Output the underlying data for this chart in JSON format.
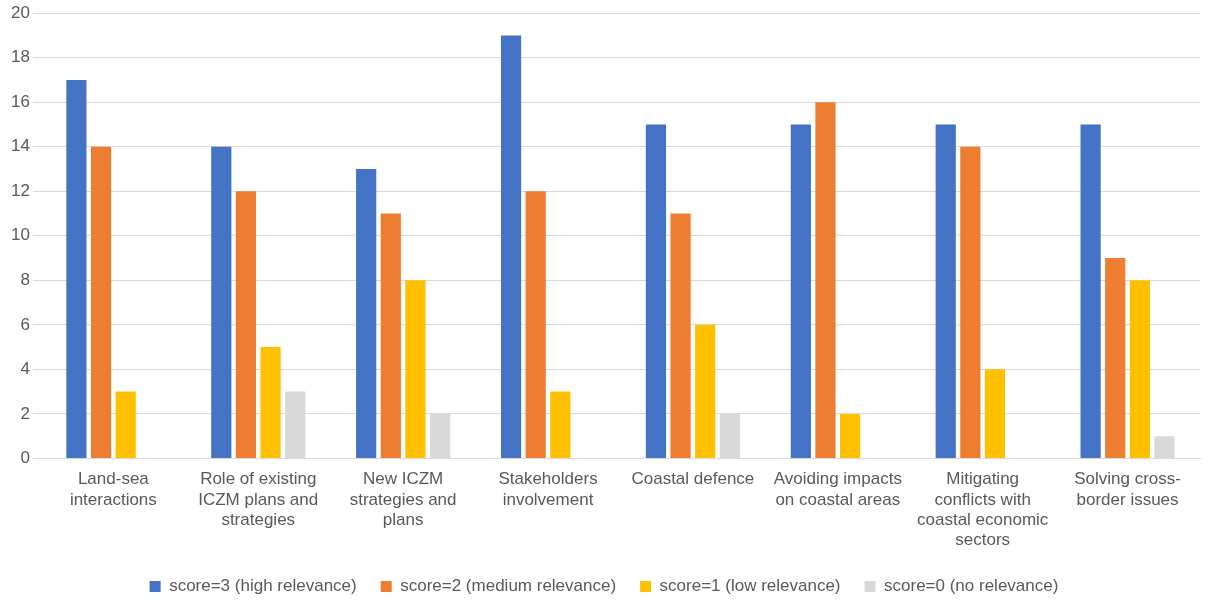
{
  "chart_data": {
    "type": "bar",
    "categories": [
      "Land-sea interactions",
      "Role of existing ICZM plans and strategies",
      "New ICZM strategies and plans",
      "Stakeholders involvement",
      "Coastal defence",
      "Avoiding impacts on coastal areas",
      "Mitigating conflicts with coastal economic sectors",
      "Solving cross-border issues"
    ],
    "series": [
      {
        "name": "score=3 (high relevance)",
        "color": "#4472c4",
        "values": [
          17,
          14,
          13,
          19,
          15,
          15,
          15,
          15
        ]
      },
      {
        "name": "score=2 (medium relevance)",
        "color": "#ed7d31",
        "values": [
          14,
          12,
          11,
          12,
          11,
          16,
          14,
          9
        ]
      },
      {
        "name": "score=1 (low relevance)",
        "color": "#ffc000",
        "values": [
          3,
          5,
          8,
          3,
          6,
          2,
          4,
          8
        ]
      },
      {
        "name": "score=0 (no relevance)",
        "color": "#d9d9d9",
        "values": [
          0,
          3,
          2,
          0,
          2,
          0,
          0,
          1
        ]
      }
    ],
    "ylim": [
      0,
      20
    ],
    "yticks": [
      0,
      2,
      4,
      6,
      8,
      10,
      12,
      14,
      16,
      18,
      20
    ],
    "grid": "y",
    "legend": "bottom"
  }
}
